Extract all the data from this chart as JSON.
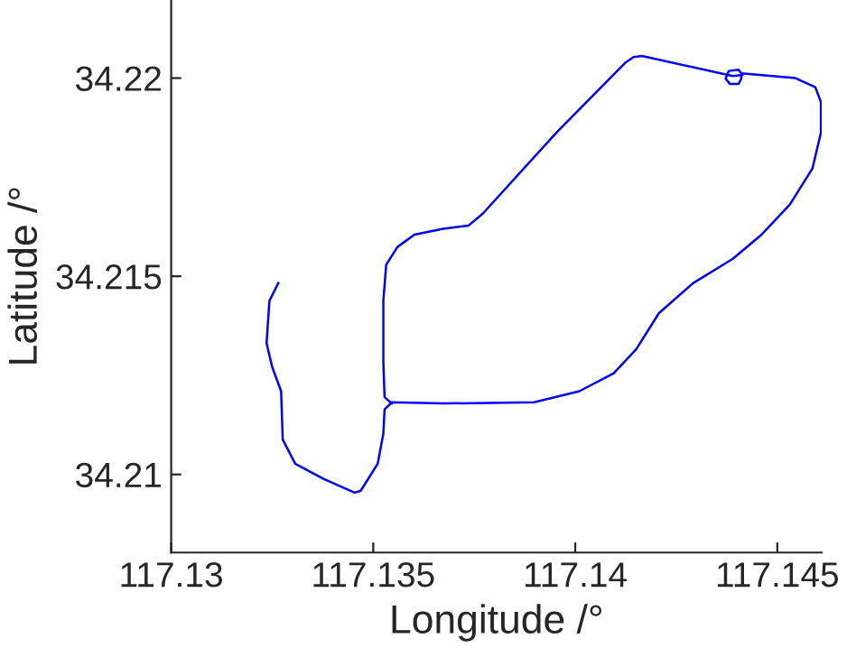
{
  "chart_data": {
    "type": "line",
    "xlabel": "Longitude /°",
    "ylabel": "Latitude /°",
    "xlim": [
      117.13,
      117.1461
    ],
    "ylim": [
      34.20803,
      34.22197
    ],
    "xticks": [
      117.13,
      117.135,
      117.14,
      117.145
    ],
    "yticks": [
      34.21,
      34.215,
      34.22
    ],
    "grid": false,
    "marker": "none",
    "line_style": "solid",
    "series": [
      {
        "color": "#0000ff",
        "x": [
          117.13265,
          117.13243,
          117.13236,
          117.1325,
          117.13272,
          117.13276,
          117.13307,
          117.13377,
          117.13454,
          117.13469,
          117.13511,
          117.13525,
          117.13528,
          117.13546,
          117.13673,
          117.13898,
          117.1401,
          117.14095,
          117.14151,
          117.14207,
          117.14292,
          117.1439,
          117.14461,
          117.14531,
          117.14587,
          117.14608,
          117.14608,
          117.14594,
          117.14545,
          117.14411,
          117.14411,
          117.14404,
          117.14383,
          117.14372,
          117.1438,
          117.14404,
          117.14414,
          117.1439,
          117.14165,
          117.14144,
          117.14123,
          117.13954,
          117.13771,
          117.13736,
          117.13673,
          117.13602,
          117.1356,
          117.13532,
          117.13525,
          117.13525,
          117.13528,
          117.13546
        ],
        "values": [
          34.21483,
          34.21438,
          34.21331,
          34.21271,
          34.2121,
          34.21088,
          34.21027,
          34.20989,
          34.20954,
          34.20959,
          34.21027,
          34.21103,
          34.21164,
          34.21182,
          34.21179,
          34.21182,
          34.2121,
          34.21255,
          34.21316,
          34.21407,
          34.21483,
          34.21544,
          34.21605,
          34.21681,
          34.21772,
          34.21863,
          34.21939,
          34.21977,
          34.22,
          34.22012,
          34.21999,
          34.21985,
          34.21985,
          34.21999,
          34.22018,
          34.22021,
          34.22008,
          34.22005,
          34.22056,
          34.22053,
          34.22038,
          34.21863,
          34.21658,
          34.21628,
          34.2162,
          34.21605,
          34.21574,
          34.21529,
          34.21438,
          34.21286,
          34.21195,
          34.21179
        ]
      }
    ]
  }
}
